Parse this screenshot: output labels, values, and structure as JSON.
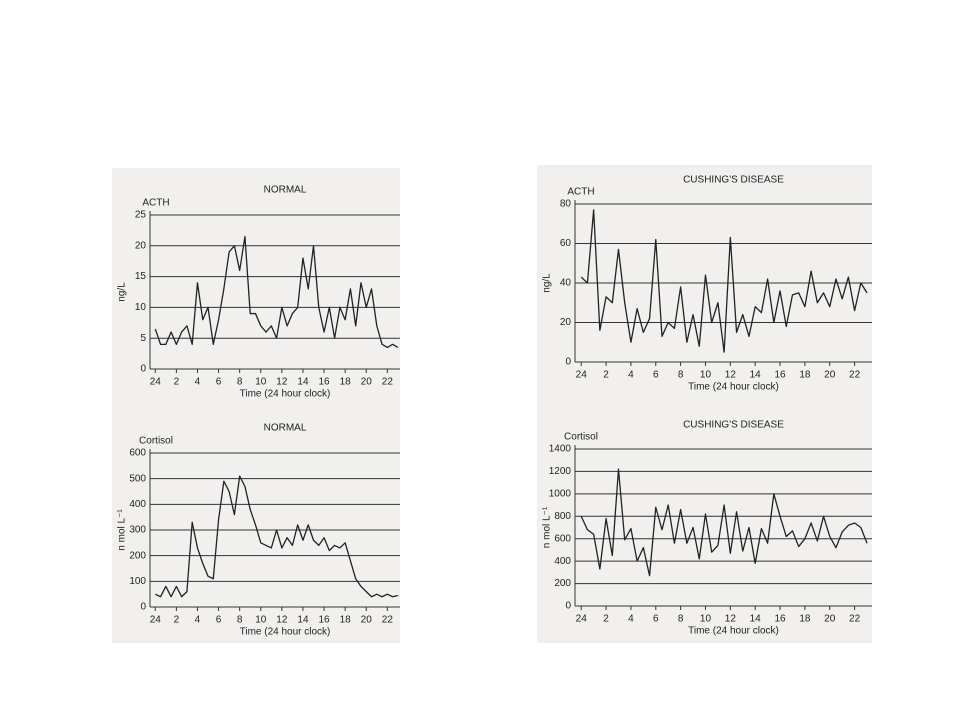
{
  "chart_data": [
    {
      "type": "line",
      "title": "NORMAL",
      "y_label": "ng/L",
      "x_label": "Time (24 hour clock)",
      "x": [
        0,
        0.5,
        1,
        1.5,
        2,
        2.5,
        3,
        3.5,
        4,
        4.5,
        5,
        5.5,
        6,
        6.5,
        7,
        7.5,
        8,
        8.5,
        9,
        9.5,
        10,
        10.5,
        11,
        11.5,
        12,
        12.5,
        13,
        13.5,
        14,
        14.5,
        15,
        15.5,
        16,
        16.5,
        17,
        17.5,
        18,
        18.5,
        19,
        19.5,
        20,
        20.5,
        21,
        21.5,
        22,
        22.5,
        23
      ],
      "series": [
        {
          "name": "ACTH",
          "color": "#222222",
          "values": [
            6.5,
            4,
            4,
            6,
            4,
            6,
            7,
            4,
            14,
            8,
            10,
            4,
            8,
            13,
            19,
            20,
            16,
            21.5,
            9,
            9,
            7,
            6,
            7,
            5,
            10,
            7,
            9,
            10,
            18,
            13,
            20,
            10,
            6,
            10,
            5,
            10,
            8,
            13,
            7,
            14,
            10,
            13,
            7,
            4,
            3.5,
            4,
            3.5
          ]
        }
      ],
      "xlim": [
        -0.5,
        23.2
      ],
      "xticks": [
        {
          "value": 0,
          "label": "24"
        },
        2,
        4,
        6,
        8,
        10,
        12,
        14,
        16,
        18,
        20,
        22
      ],
      "ylim": [
        0,
        25
      ],
      "yticks": [
        0,
        5,
        10,
        15,
        20,
        25
      ],
      "grid": true
    },
    {
      "type": "line",
      "title": "NORMAL",
      "y_label": "n mol L⁻¹",
      "x_label": "Time (24 hour clock)",
      "x": [
        0,
        0.5,
        1,
        1.5,
        2,
        2.5,
        3,
        3.5,
        4,
        4.5,
        5,
        5.5,
        6,
        6.5,
        7,
        7.5,
        8,
        8.5,
        9,
        9.5,
        10,
        10.5,
        11,
        11.5,
        12,
        12.5,
        13,
        13.5,
        14,
        14.5,
        15,
        15.5,
        16,
        16.5,
        17,
        17.5,
        18,
        18.5,
        19,
        19.5,
        20,
        20.5,
        21,
        21.5,
        22,
        22.5,
        23
      ],
      "series": [
        {
          "name": "Cortisol",
          "color": "#222222",
          "values": [
            50,
            40,
            80,
            40,
            80,
            40,
            60,
            330,
            230,
            170,
            120,
            110,
            340,
            490,
            450,
            360,
            510,
            470,
            380,
            320,
            250,
            240,
            230,
            300,
            230,
            270,
            240,
            320,
            260,
            320,
            260,
            240,
            270,
            220,
            240,
            230,
            250,
            180,
            110,
            80,
            60,
            40,
            50,
            40,
            50,
            40,
            45
          ]
        }
      ],
      "xlim": [
        -0.5,
        23.2
      ],
      "xticks": [
        {
          "value": 0,
          "label": "24"
        },
        2,
        4,
        6,
        8,
        10,
        12,
        14,
        16,
        18,
        20,
        22
      ],
      "ylim": [
        0,
        600
      ],
      "yticks": [
        0,
        100,
        200,
        300,
        400,
        500,
        600
      ],
      "grid": true
    },
    {
      "type": "line",
      "title": "CUSHING'S DISEASE",
      "y_label": "ng/L",
      "x_label": "Time (24 hour clock)",
      "x": [
        0,
        0.5,
        1,
        1.5,
        2,
        2.5,
        3,
        3.5,
        4,
        4.5,
        5,
        5.5,
        6,
        6.5,
        7,
        7.5,
        8,
        8.5,
        9,
        9.5,
        10,
        10.5,
        11,
        11.5,
        12,
        12.5,
        13,
        13.5,
        14,
        14.5,
        15,
        15.5,
        16,
        16.5,
        17,
        17.5,
        18,
        18.5,
        19,
        19.5,
        20,
        20.5,
        21,
        21.5,
        22,
        22.5,
        23
      ],
      "series": [
        {
          "name": "ACTH",
          "color": "#222222",
          "values": [
            43,
            40,
            77,
            16,
            33,
            30,
            57,
            30,
            10,
            27,
            15,
            22,
            62,
            13,
            20,
            17,
            38,
            10,
            24,
            8,
            44,
            20,
            30,
            5,
            63,
            15,
            24,
            13,
            28,
            25,
            42,
            20,
            36,
            18,
            34,
            35,
            28,
            46,
            30,
            35,
            28,
            42,
            32,
            43,
            26,
            40,
            35
          ]
        }
      ],
      "xlim": [
        -0.5,
        23.4
      ],
      "xticks": [
        {
          "value": 0,
          "label": "24"
        },
        2,
        4,
        6,
        8,
        10,
        12,
        14,
        16,
        18,
        20,
        22
      ],
      "ylim": [
        0,
        80
      ],
      "yticks": [
        0,
        20,
        40,
        60,
        80
      ],
      "grid": true
    },
    {
      "type": "line",
      "title": "CUSHING'S DISEASE",
      "y_label": "n mol L⁻¹",
      "x_label": "Time (24 hour clock)",
      "x": [
        0,
        0.5,
        1,
        1.5,
        2,
        2.5,
        3,
        3.5,
        4,
        4.5,
        5,
        5.5,
        6,
        6.5,
        7,
        7.5,
        8,
        8.5,
        9,
        9.5,
        10,
        10.5,
        11,
        11.5,
        12,
        12.5,
        13,
        13.5,
        14,
        14.5,
        15,
        15.5,
        16,
        16.5,
        17,
        17.5,
        18,
        18.5,
        19,
        19.5,
        20,
        20.5,
        21,
        21.5,
        22,
        22.5,
        23
      ],
      "series": [
        {
          "name": "Cortisol",
          "color": "#222222",
          "values": [
            800,
            680,
            640,
            330,
            780,
            450,
            1220,
            590,
            690,
            400,
            520,
            270,
            880,
            680,
            900,
            560,
            860,
            560,
            700,
            420,
            820,
            480,
            540,
            900,
            470,
            840,
            490,
            700,
            380,
            690,
            560,
            1000,
            800,
            620,
            670,
            530,
            600,
            740,
            580,
            800,
            620,
            520,
            660,
            720,
            740,
            700,
            560
          ]
        }
      ],
      "xlim": [
        -0.5,
        23.4
      ],
      "xticks": [
        {
          "value": 0,
          "label": "24"
        },
        2,
        4,
        6,
        8,
        10,
        12,
        14,
        16,
        18,
        20,
        22
      ],
      "ylim": [
        0,
        1400
      ],
      "yticks": [
        0,
        200,
        400,
        600,
        800,
        1000,
        1200,
        1400
      ],
      "grid": true
    }
  ]
}
